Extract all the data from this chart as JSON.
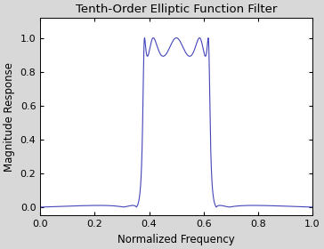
{
  "title": "Tenth-Order Elliptic Function Filter",
  "xlabel": "Normalized Frequency",
  "ylabel": "Magnitude Response",
  "xlim": [
    0,
    1
  ],
  "ylim": [
    -0.05,
    1.12
  ],
  "yticks": [
    0,
    0.2,
    0.4,
    0.6,
    0.8,
    1.0
  ],
  "xticks": [
    0,
    0.2,
    0.4,
    0.6,
    0.8,
    1.0
  ],
  "line_color": "#4444bb",
  "line_width": 0.8,
  "bg_color": "#ffffff",
  "fig_bg_color": "#d8d8d8",
  "title_fontsize": 9.5,
  "label_fontsize": 8.5,
  "tick_fontsize": 8,
  "filter_order": 10,
  "rp": 1.0,
  "rs": 40,
  "low_cutoff": 0.38,
  "high_cutoff": 0.62
}
